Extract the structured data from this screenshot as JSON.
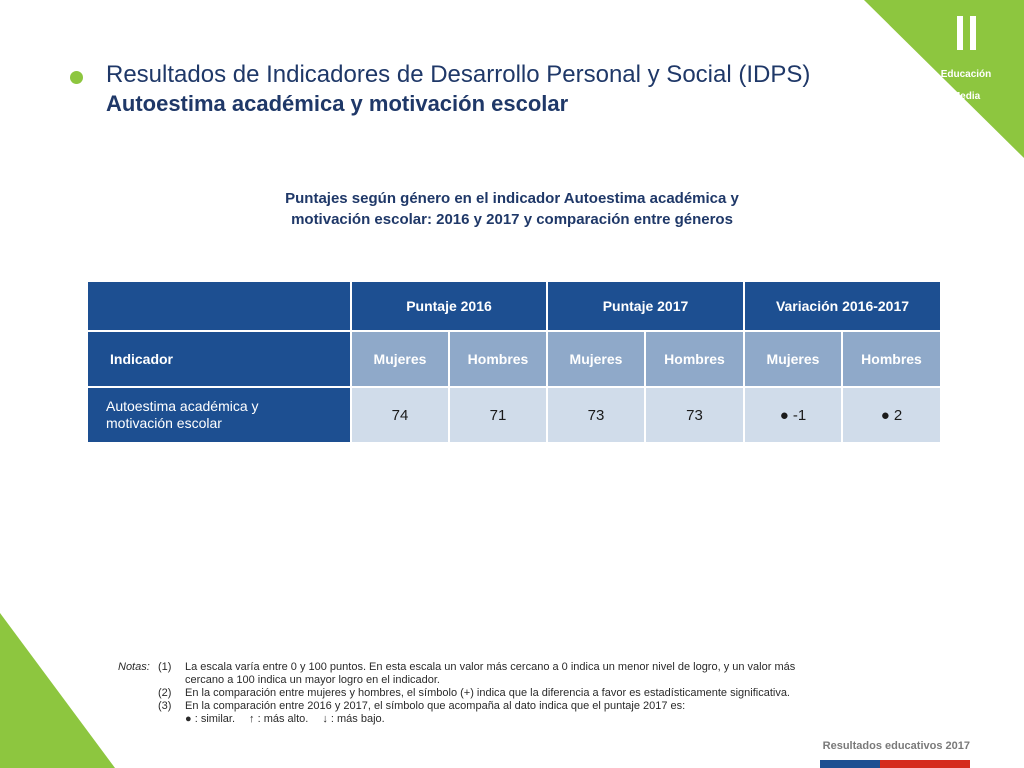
{
  "brand": {
    "line1": "Educación",
    "line2": "Media"
  },
  "heading": {
    "line1": "Resultados de Indicadores de Desarrollo Personal y Social (IDPS)",
    "line2": "Autoestima académica y motivación escolar"
  },
  "table": {
    "title_line1": "Puntajes según género en el indicador Autoestima académica y",
    "title_line2": "motivación escolar: 2016 y 2017 y comparación entre géneros",
    "group_headers": [
      "Puntaje 2016",
      "Puntaje 2017",
      "Variación 2016-2017"
    ],
    "indicator_header": "Indicador",
    "sub_headers": [
      "Mujeres",
      "Hombres",
      "Mujeres",
      "Hombres",
      "Mujeres",
      "Hombres"
    ],
    "row": {
      "indicator": "Autoestima académica y\nmotivación escolar",
      "values": [
        "74",
        "71",
        "73",
        "73",
        "● -1",
        "● 2"
      ]
    }
  },
  "notes": {
    "label": "Notas:",
    "items": [
      {
        "num": "(1)",
        "text": "La escala varía entre 0 y 100 puntos. En esta escala un valor más cercano a 0 indica un menor nivel de logro, y un valor más cercano a 100 indica un mayor logro en el indicador."
      },
      {
        "num": "(2)",
        "text": "En la comparación entre mujeres y hombres, el símbolo (+) indica que la diferencia a favor es estadísticamente significativa."
      },
      {
        "num": "(3)",
        "text": "En la comparación entre 2016 y 2017, el símbolo que acompaña al dato indica que el puntaje 2017 es:"
      }
    ],
    "legend": [
      "● :   similar.",
      "↑ :   más alto.",
      "↓ :   más bajo."
    ]
  },
  "footer": {
    "text": "Resultados educativos 2017"
  },
  "colors": {
    "accent_green": "#8dc63f",
    "header_dark_blue": "#1d4f91",
    "header_mid_blue": "#8fa9c9",
    "cell_light_blue": "#d0dcea"
  }
}
